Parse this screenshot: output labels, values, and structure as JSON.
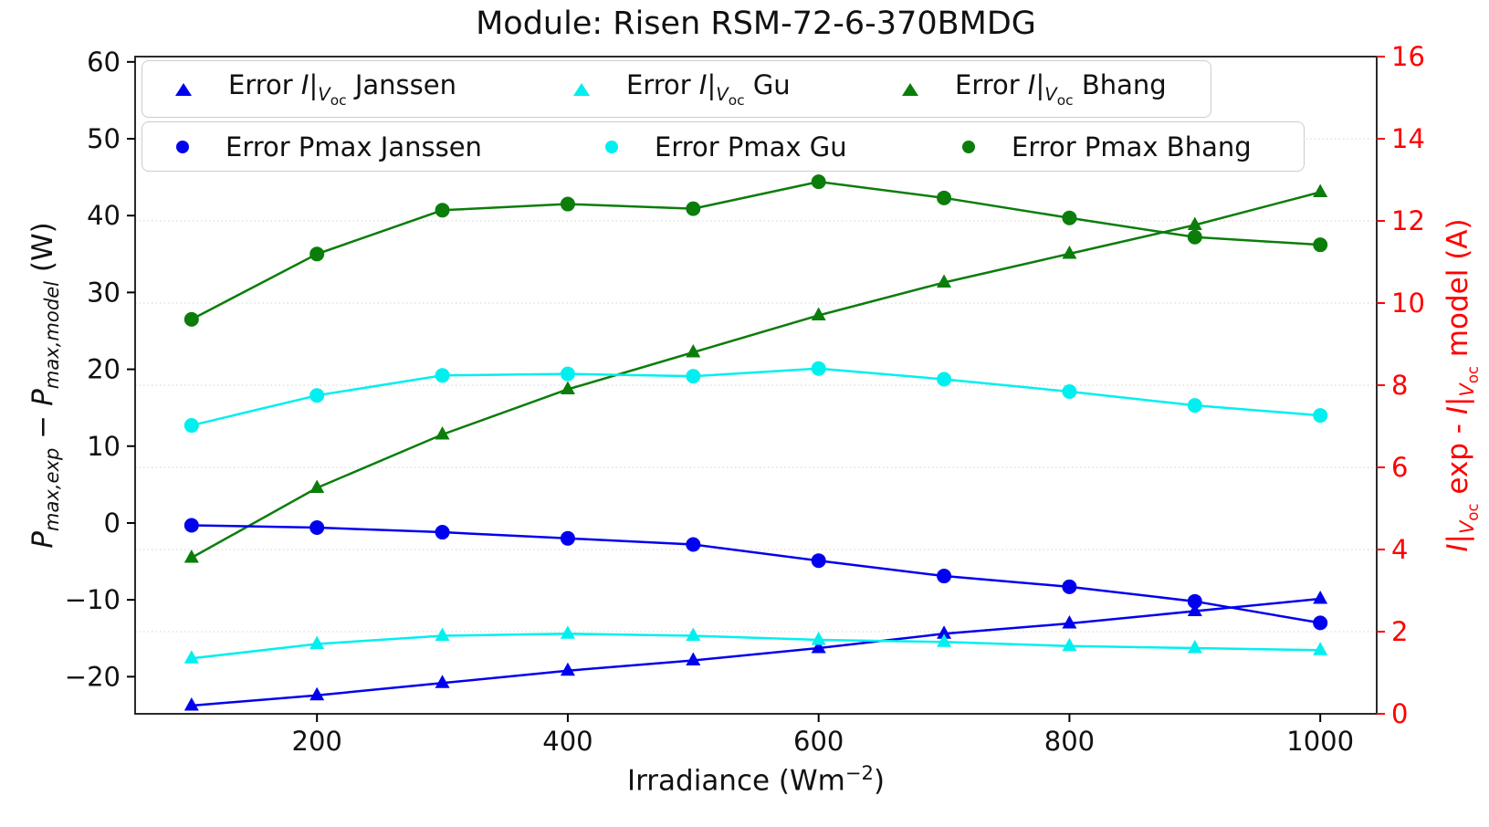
{
  "title": "Module: Risen RSM-72-6-370BMDG",
  "xlabel_parts": {
    "pre": "Irradiance (Wm",
    "sup": "−2",
    "post": ")"
  },
  "ylabel_left_parts": {
    "p1": "P",
    "s1": "max,exp",
    "mid": " − ",
    "p2": "P",
    "s2": "max,model",
    "end": " (W)"
  },
  "ylabel_right_parts": {
    "i1": "I",
    "b1": "|",
    "v1": "V",
    "o1": "oc",
    "mid": " exp - ",
    "i2": "I",
    "b2": "|",
    "v2": "V",
    "o2": "oc",
    "end": " model (A)"
  },
  "legend": {
    "row1": [
      {
        "pre": "Error ",
        "math_i": "I",
        "math_bar": "|",
        "math_v": "V",
        "math_sub": "oc",
        "post": " Janssen"
      },
      {
        "pre": "Error ",
        "math_i": "I",
        "math_bar": "|",
        "math_v": "V",
        "math_sub": "oc",
        "post": " Gu"
      },
      {
        "pre": "Error ",
        "math_i": "I",
        "math_bar": "|",
        "math_v": "V",
        "math_sub": "oc",
        "post": " Bhang"
      }
    ],
    "row2": [
      {
        "label": "Error Pmax Janssen"
      },
      {
        "label": "Error Pmax Gu"
      },
      {
        "label": "Error Pmax Bhang"
      }
    ]
  },
  "colors": {
    "blue": "#0000EE",
    "cyan": "#00EFEF",
    "green": "#0B7D0B",
    "right_axis_red": "#FF0000",
    "grid": "#DCDCDC",
    "frame": "#2B2B2B",
    "text": "#111111"
  },
  "chart_data": {
    "type": "line",
    "title": "Module: Risen RSM-72-6-370BMDG",
    "xlabel": "Irradiance (Wm^-2)",
    "ylabel_left": "P_max,exp - P_max,model (W)",
    "ylabel_right": "I|V_oc exp - I|V_oc model (A)",
    "x": [
      100,
      200,
      300,
      400,
      500,
      600,
      700,
      800,
      900,
      1000
    ],
    "x_ticks": [
      200,
      400,
      600,
      800,
      1000
    ],
    "xlim": [
      55,
      1045
    ],
    "left_axis": {
      "ticks": [
        60,
        50,
        40,
        30,
        20,
        10,
        0,
        -10,
        -20
      ],
      "lim": [
        -24.83,
        60.69
      ],
      "color": "#111111"
    },
    "right_axis": {
      "ticks": [
        16,
        14,
        12,
        10,
        8,
        6,
        4,
        2,
        0
      ],
      "lim": [
        0,
        16
      ],
      "color": "#FF0000"
    },
    "grid": {
      "on": true,
      "axis": "right",
      "ticks": [
        2,
        4,
        6,
        8,
        10,
        12,
        14
      ],
      "style": "dotted"
    },
    "legend_position": "upper left, two boxes, 3 columns each",
    "series": [
      {
        "name": "Error I|Voc Janssen",
        "axis": "right",
        "marker": "triangle",
        "color": "#0000EE",
        "values": [
          0.2,
          0.45,
          0.75,
          1.05,
          1.3,
          1.6,
          1.95,
          2.2,
          2.5,
          2.8
        ]
      },
      {
        "name": "Error I|Voc Gu",
        "axis": "right",
        "marker": "triangle",
        "color": "#00EFEF",
        "values": [
          1.35,
          1.7,
          1.9,
          1.95,
          1.9,
          1.8,
          1.75,
          1.65,
          1.6,
          1.55
        ]
      },
      {
        "name": "Error I|Voc Bhang",
        "axis": "right",
        "marker": "triangle",
        "color": "#0B7D0B",
        "values": [
          3.8,
          5.5,
          6.8,
          7.9,
          8.8,
          9.7,
          10.5,
          11.2,
          11.9,
          12.7
        ]
      },
      {
        "name": "Error Pmax Janssen",
        "axis": "left",
        "marker": "circle",
        "color": "#0000EE",
        "values": [
          -0.3,
          -0.6,
          -1.2,
          -2.0,
          -2.8,
          -4.9,
          -6.9,
          -8.3,
          -10.2,
          -13.0
        ]
      },
      {
        "name": "Error Pmax Gu",
        "axis": "left",
        "marker": "circle",
        "color": "#00EFEF",
        "values": [
          12.7,
          16.6,
          19.2,
          19.4,
          19.1,
          20.1,
          18.7,
          17.1,
          15.3,
          14.0
        ]
      },
      {
        "name": "Error Pmax Bhang",
        "axis": "left",
        "marker": "circle",
        "color": "#0B7D0B",
        "values": [
          26.5,
          35.0,
          40.7,
          41.5,
          40.9,
          44.4,
          42.3,
          39.7,
          37.2,
          36.2
        ]
      }
    ]
  }
}
